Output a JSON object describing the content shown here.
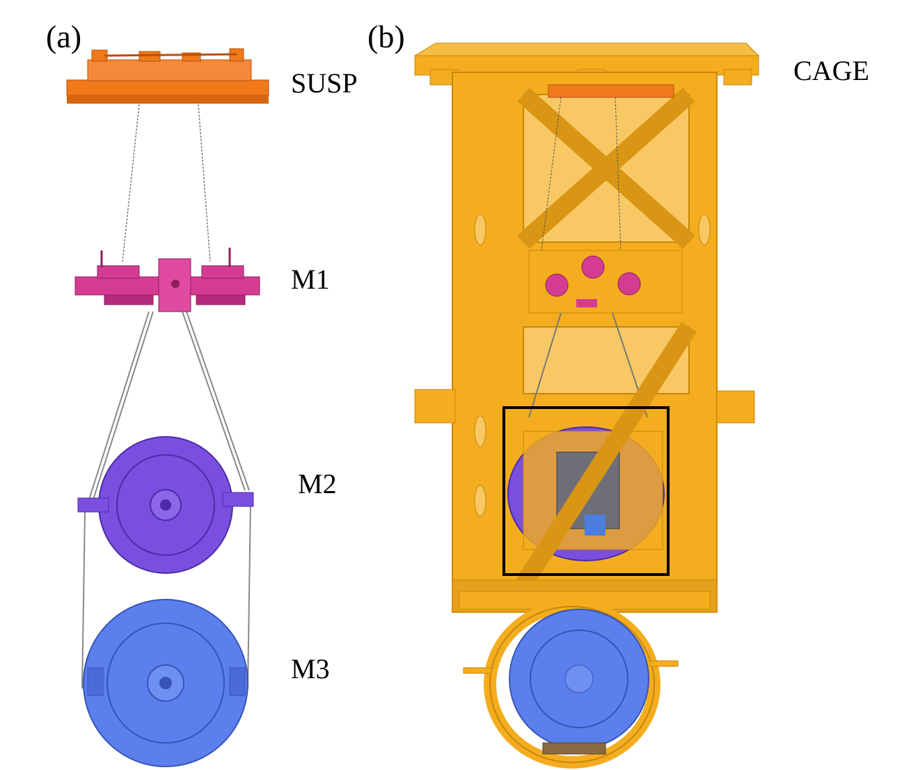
{
  "panels": {
    "a": "(a)",
    "b": "(b)"
  },
  "labels": {
    "susp": "SUSP",
    "m1": "M1",
    "m2": "M2",
    "m3": "M3",
    "cage": "CAGE"
  },
  "colors": {
    "susp": "#f07a1a",
    "m1": "#d43c92",
    "m2": "#7a4fe0",
    "m3": "#5b80ee",
    "cage": "#f3ad1e",
    "cage_dark": "#c8860c",
    "box": "#000000",
    "wire": "#666666"
  }
}
